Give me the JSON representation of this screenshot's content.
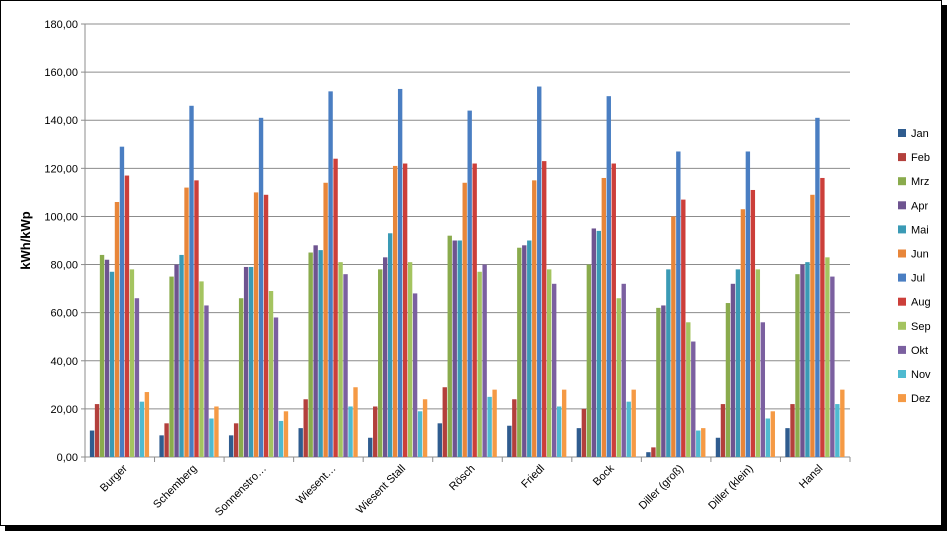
{
  "chart_data": {
    "type": "bar",
    "title": "",
    "xlabel": "",
    "ylabel": "kWh/kWp",
    "ylim": [
      0,
      180
    ],
    "ytick_labels": [
      "0,00",
      "20,00",
      "40,00",
      "60,00",
      "80,00",
      "100,00",
      "120,00",
      "140,00",
      "160,00",
      "180,00"
    ],
    "grid": true,
    "legend_position": "right",
    "categories": [
      "Burger",
      "Schemberg",
      "Sonnenstro…",
      "Wiesent…",
      "Wiesent Stall",
      "Rösch",
      "Friedl",
      "Bock",
      "Diller (groß)",
      "Diller (klein)",
      "Hansl"
    ],
    "series": [
      {
        "name": "Jan",
        "color": "#2f5c8f",
        "values": [
          11,
          9,
          9,
          12,
          8,
          14,
          13,
          12,
          2,
          8,
          12
        ]
      },
      {
        "name": "Feb",
        "color": "#b3403c",
        "values": [
          22,
          14,
          14,
          24,
          21,
          29,
          24,
          20,
          4,
          22,
          22
        ]
      },
      {
        "name": "Mrz",
        "color": "#8aab4d",
        "values": [
          84,
          75,
          66,
          85,
          78,
          92,
          87,
          80,
          62,
          64,
          76
        ]
      },
      {
        "name": "Apr",
        "color": "#6e5490",
        "values": [
          82,
          80,
          79,
          88,
          83,
          90,
          88,
          95,
          63,
          72,
          80
        ]
      },
      {
        "name": "Mai",
        "color": "#3a9ab5",
        "values": [
          77,
          84,
          79,
          86,
          93,
          90,
          90,
          94,
          78,
          78,
          81
        ]
      },
      {
        "name": "Jun",
        "color": "#e8863a",
        "values": [
          106,
          112,
          110,
          114,
          121,
          114,
          115,
          116,
          100,
          103,
          109
        ]
      },
      {
        "name": "Jul",
        "color": "#4a7ec2",
        "values": [
          129,
          146,
          141,
          152,
          153,
          144,
          154,
          150,
          127,
          127,
          141
        ]
      },
      {
        "name": "Aug",
        "color": "#cc3f3a",
        "values": [
          117,
          115,
          109,
          124,
          122,
          122,
          123,
          122,
          107,
          111,
          116
        ]
      },
      {
        "name": "Sep",
        "color": "#a4c460",
        "values": [
          78,
          73,
          69,
          81,
          81,
          77,
          78,
          66,
          56,
          78,
          83
        ]
      },
      {
        "name": "Okt",
        "color": "#7b60a0",
        "values": [
          66,
          63,
          58,
          76,
          68,
          80,
          72,
          72,
          48,
          56,
          75
        ]
      },
      {
        "name": "Nov",
        "color": "#4fbad0",
        "values": [
          23,
          16,
          15,
          21,
          19,
          25,
          21,
          23,
          11,
          16,
          22
        ]
      },
      {
        "name": "Dez",
        "color": "#f59a45",
        "values": [
          27,
          21,
          19,
          29,
          24,
          28,
          28,
          28,
          12,
          19,
          28
        ]
      }
    ]
  }
}
